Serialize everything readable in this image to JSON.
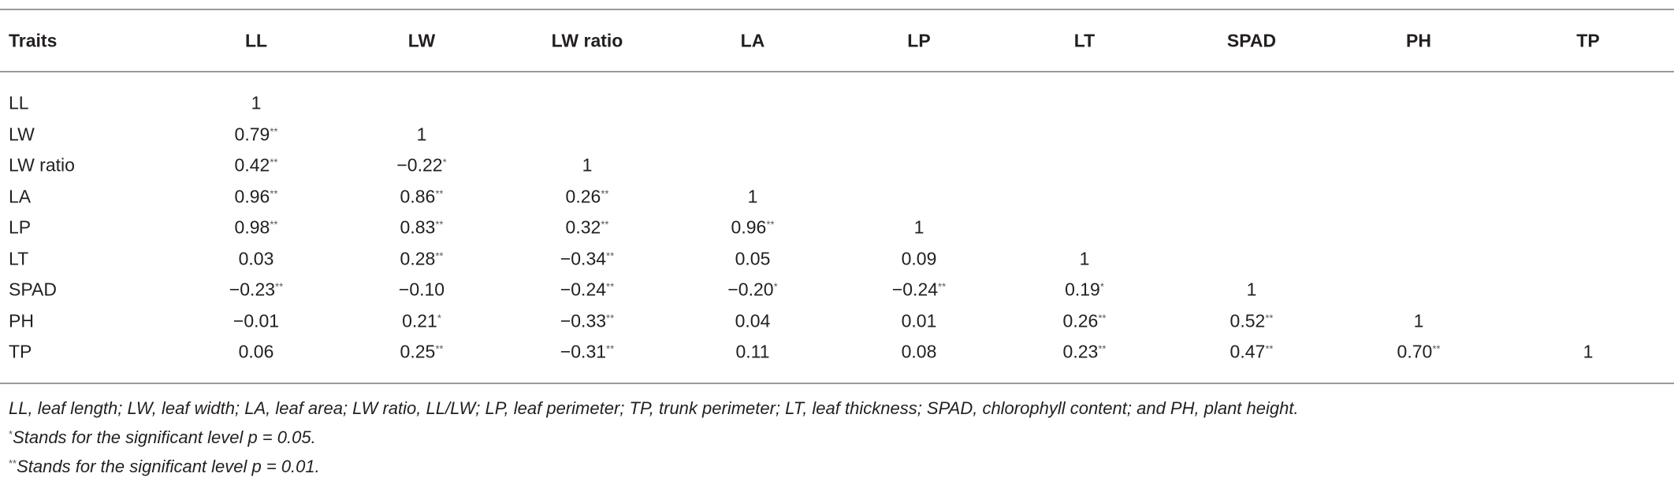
{
  "table": {
    "header": [
      "Traits",
      "LL",
      "LW",
      "LW ratio",
      "LA",
      "LP",
      "LT",
      "SPAD",
      "PH",
      "TP"
    ],
    "rows": [
      {
        "label": "LL",
        "cells": [
          {
            "text": "1"
          }
        ]
      },
      {
        "label": "LW",
        "cells": [
          {
            "text": "0.79",
            "sup": "**"
          },
          {
            "text": "1"
          }
        ]
      },
      {
        "label": "LW ratio",
        "cells": [
          {
            "text": "0.42",
            "sup": "**"
          },
          {
            "text": "−0.22",
            "sup": "*"
          },
          {
            "text": "1"
          }
        ]
      },
      {
        "label": "LA",
        "cells": [
          {
            "text": "0.96",
            "sup": "**"
          },
          {
            "text": "0.86",
            "sup": "**"
          },
          {
            "text": "0.26",
            "sup": "**"
          },
          {
            "text": "1"
          }
        ]
      },
      {
        "label": "LP",
        "cells": [
          {
            "text": "0.98",
            "sup": "**"
          },
          {
            "text": "0.83",
            "sup": "**"
          },
          {
            "text": "0.32",
            "sup": "**"
          },
          {
            "text": "0.96",
            "sup": "**"
          },
          {
            "text": "1"
          }
        ]
      },
      {
        "label": "LT",
        "cells": [
          {
            "text": "0.03"
          },
          {
            "text": "0.28",
            "sup": "**"
          },
          {
            "text": "−0.34",
            "sup": "**"
          },
          {
            "text": "0.05"
          },
          {
            "text": "0.09"
          },
          {
            "text": "1"
          }
        ]
      },
      {
        "label": "SPAD",
        "cells": [
          {
            "text": "−0.23",
            "sup": "**"
          },
          {
            "text": "−0.10"
          },
          {
            "text": "−0.24",
            "sup": "**"
          },
          {
            "text": "−0.20",
            "sup": "*"
          },
          {
            "text": "−0.24",
            "sup": "**"
          },
          {
            "text": "0.19",
            "sup": "*"
          },
          {
            "text": "1"
          }
        ]
      },
      {
        "label": "PH",
        "cells": [
          {
            "text": "−0.01"
          },
          {
            "text": "0.21",
            "sup": "*"
          },
          {
            "text": "−0.33",
            "sup": "**"
          },
          {
            "text": "0.04"
          },
          {
            "text": "0.01"
          },
          {
            "text": "0.26",
            "sup": "**"
          },
          {
            "text": "0.52",
            "sup": "**"
          },
          {
            "text": "1"
          }
        ]
      },
      {
        "label": "TP",
        "cells": [
          {
            "text": "0.06"
          },
          {
            "text": "0.25",
            "sup": "**"
          },
          {
            "text": "−0.31",
            "sup": "**"
          },
          {
            "text": "0.11"
          },
          {
            "text": "0.08"
          },
          {
            "text": "0.23",
            "sup": "**"
          },
          {
            "text": "0.47",
            "sup": "**"
          },
          {
            "text": "0.70",
            "sup": "**"
          },
          {
            "text": "1"
          }
        ]
      }
    ]
  },
  "footnotes": [
    {
      "text": "LL, leaf length; LW, leaf width; LA, leaf area; LW ratio, LL/LW; LP, leaf perimeter; TP, trunk perimeter; LT, leaf thickness; SPAD, chlorophyll content; and PH, plant height."
    },
    {
      "mark": "*",
      "text": "Stands for the significant level p = 0.05."
    },
    {
      "mark": "**",
      "text": "Stands for the significant level p = 0.01."
    }
  ]
}
